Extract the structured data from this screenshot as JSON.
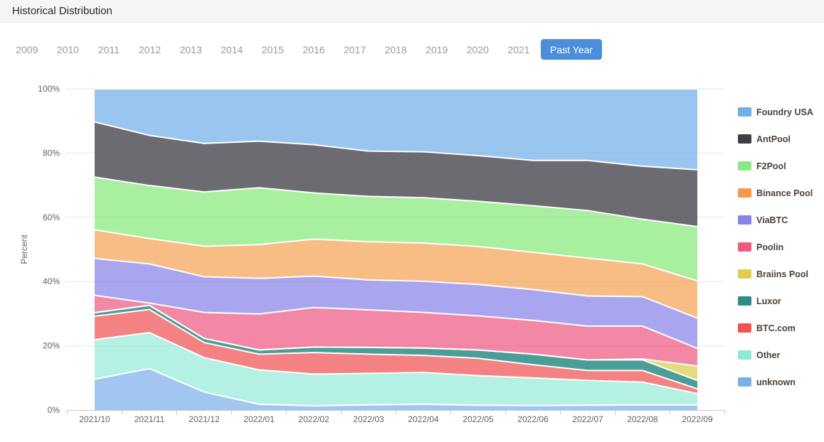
{
  "header": {
    "title": "Historical Distribution"
  },
  "tabs": {
    "years": [
      "2009",
      "2010",
      "2011",
      "2012",
      "2013",
      "2014",
      "2015",
      "2016",
      "2017",
      "2018",
      "2019",
      "2020",
      "2021"
    ],
    "past_year_label": "Past Year",
    "active_tab": "Past Year",
    "active_color": "#4a8edc"
  },
  "chart_data": {
    "type": "area",
    "stacked": true,
    "normalized_percent": true,
    "title": "Historical Distribution",
    "xlabel": "",
    "ylabel": "Percent",
    "ylim": [
      0,
      100
    ],
    "grid": true,
    "legend_position": "right",
    "y_ticks": [
      0,
      20,
      40,
      60,
      80,
      100
    ],
    "y_tick_labels": [
      "0%",
      "20%",
      "40%",
      "60%",
      "80%",
      "100%"
    ],
    "categories": [
      "2021/10",
      "2021/11",
      "2021/12",
      "2022/01",
      "2022/02",
      "2022/03",
      "2022/04",
      "2022/05",
      "2022/06",
      "2022/07",
      "2022/08",
      "2022/09"
    ],
    "series": [
      {
        "id": "foundry-usa",
        "name": "Foundry USA",
        "color": "#73ade7",
        "area_color": "#9ac5ef",
        "values": [
          10.3,
          14.5,
          17.0,
          16.3,
          17.4,
          19.4,
          19.6,
          20.8,
          22.3,
          22.3,
          24.1,
          25.2
        ]
      },
      {
        "id": "antpool",
        "name": "AntPool",
        "color": "#3e3e44",
        "area_color": "#6b6b71",
        "values": [
          17.2,
          15.6,
          15.1,
          14.5,
          15.0,
          14.1,
          14.3,
          14.2,
          14.1,
          15.6,
          16.5,
          17.7
        ]
      },
      {
        "id": "f2pool",
        "name": "F2Pool",
        "color": "#8be885",
        "area_color": "#a8efa0",
        "values": [
          16.4,
          16.5,
          16.9,
          17.7,
          14.4,
          14.1,
          14.1,
          14.1,
          14.5,
          14.8,
          13.9,
          16.9
        ]
      },
      {
        "id": "binance-pool",
        "name": "Binance Pool",
        "color": "#f49a4b",
        "area_color": "#f7bd85",
        "values": [
          8.9,
          7.9,
          9.5,
          10.5,
          11.5,
          11.9,
          11.9,
          11.8,
          11.6,
          11.8,
          10.2,
          11.6
        ]
      },
      {
        "id": "viabtc",
        "name": "ViaBTC",
        "color": "#8781e8",
        "area_color": "#aaa5ef",
        "values": [
          11.5,
          12.2,
          11.1,
          11.1,
          9.8,
          9.3,
          9.7,
          9.8,
          9.6,
          9.4,
          9.2,
          9.4
        ]
      },
      {
        "id": "poolin",
        "name": "Poolin",
        "color": "#ee5a7e",
        "area_color": "#f287a6",
        "values": [
          5.4,
          0.7,
          8.1,
          11.2,
          12.3,
          11.7,
          11.1,
          10.6,
          10.5,
          10.5,
          10.2,
          5.5
        ]
      },
      {
        "id": "braiins-pool",
        "name": "Braiins Pool",
        "color": "#ddcf52",
        "area_color": "#e7da7d",
        "values": [
          0,
          0,
          0,
          0,
          0,
          0,
          0,
          0,
          0,
          0,
          0.3,
          4.5
        ]
      },
      {
        "id": "luxor",
        "name": "Luxor",
        "color": "#2f8c87",
        "area_color": "#4b9d98",
        "values": [
          1.1,
          1.3,
          1.3,
          1.3,
          1.7,
          2.1,
          2.3,
          2.6,
          3.3,
          3.3,
          3.3,
          2.6
        ]
      },
      {
        "id": "btc-com",
        "name": "BTC.com",
        "color": "#f15352",
        "area_color": "#f58282",
        "values": [
          7.3,
          7.2,
          4.7,
          4.9,
          6.7,
          6.0,
          5.3,
          5.4,
          4.1,
          3.1,
          3.6,
          1.5
        ]
      },
      {
        "id": "other",
        "name": "Other",
        "color": "#8ee9d7",
        "area_color": "#b5f0e5",
        "values": [
          12.3,
          11.2,
          10.7,
          10.7,
          9.9,
          9.8,
          9.9,
          9.2,
          8.6,
          7.7,
          7.1,
          3.5
        ]
      },
      {
        "id": "unknown",
        "name": "unknown",
        "color": "#79b0e8",
        "area_color": "#a1c7f1",
        "values": [
          9.6,
          12.9,
          5.6,
          1.8,
          1.3,
          1.6,
          1.8,
          1.5,
          1.4,
          1.5,
          1.6,
          1.6
        ]
      }
    ]
  }
}
